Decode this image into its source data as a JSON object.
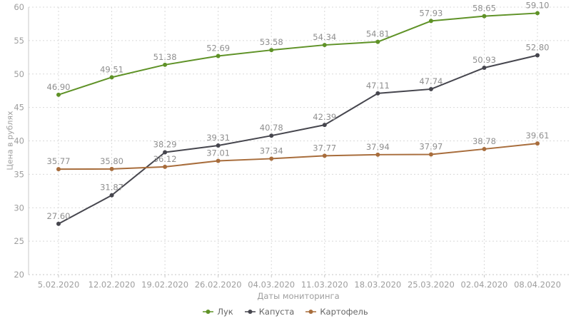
{
  "chart_data": {
    "type": "line",
    "xlabel": "Даты мониторинга",
    "ylabel": "Цена в рублях",
    "ylim": [
      20,
      60
    ],
    "ytick_step": 5,
    "grid": true,
    "legend_position": "bottom",
    "categories": [
      "5.02.2020",
      "12.02.2020",
      "19.02.2020",
      "26.02.2020",
      "04.03.2020",
      "11.03.2020",
      "18.03.2020",
      "25.03.2020",
      "02.04.2020",
      "08.04.2020"
    ],
    "series": [
      {
        "name": "Лук",
        "color": "#5f9227",
        "values": [
          46.9,
          49.51,
          51.38,
          52.69,
          53.58,
          54.34,
          54.81,
          57.93,
          58.65,
          59.1
        ]
      },
      {
        "name": "Капуста",
        "color": "#46464e",
        "values": [
          27.6,
          31.87,
          38.29,
          39.31,
          40.78,
          42.39,
          47.11,
          47.74,
          50.93,
          52.8
        ]
      },
      {
        "name": "Картофель",
        "color": "#a86d3c",
        "values": [
          35.77,
          35.8,
          36.12,
          37.01,
          37.34,
          37.77,
          37.94,
          37.97,
          38.78,
          39.61
        ]
      }
    ]
  }
}
